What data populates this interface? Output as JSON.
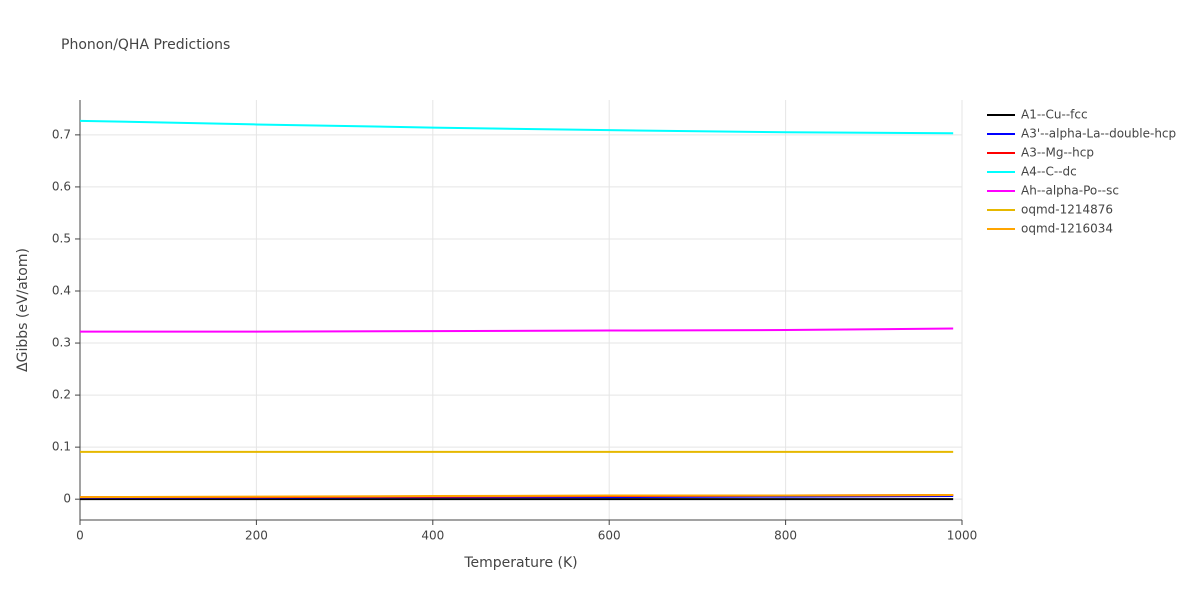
{
  "chart_data": {
    "type": "line",
    "title": "Phonon/QHA Predictions",
    "x_label": "Temperature (K)",
    "y_label": "ΔGibbs (eV/atom)",
    "x": [
      0,
      200,
      400,
      600,
      800,
      990
    ],
    "series": [
      {
        "name": "A1--Cu--fcc",
        "color": "#000000",
        "values": [
          0,
          0,
          0,
          0,
          0,
          0
        ]
      },
      {
        "name": "A3'--alpha-La--double-hcp",
        "color": "#0000ff",
        "values": [
          0.003,
          0.003,
          0.004,
          0.004,
          0.005,
          0.006
        ]
      },
      {
        "name": "A3--Mg--hcp",
        "color": "#ff0000",
        "values": [
          0.004,
          0.004,
          0.005,
          0.006,
          0.007,
          0.008
        ]
      },
      {
        "name": "A4--C--dc",
        "color": "#00ffff",
        "values": [
          0.727,
          0.72,
          0.714,
          0.709,
          0.705,
          0.703
        ]
      },
      {
        "name": "Ah--alpha-Po--sc",
        "color": "#ff00ff",
        "values": [
          0.322,
          0.322,
          0.323,
          0.324,
          0.325,
          0.328
        ]
      },
      {
        "name": "oqmd-1214876",
        "color": "#e6b800",
        "values": [
          0.091,
          0.091,
          0.091,
          0.091,
          0.091,
          0.091
        ]
      },
      {
        "name": "oqmd-1216034",
        "color": "#ffa500",
        "values": [
          0.004,
          0.005,
          0.006,
          0.007,
          0.007,
          0.008
        ]
      }
    ],
    "xlim": [
      0,
      1000
    ],
    "xticks": [
      0,
      200,
      400,
      600,
      800,
      1000
    ],
    "ylim": [
      -0.04,
      0.767
    ],
    "yticks": [
      0,
      0.1,
      0.2,
      0.3,
      0.4,
      0.5,
      0.6,
      0.7
    ],
    "grid": true,
    "legend": "right"
  }
}
